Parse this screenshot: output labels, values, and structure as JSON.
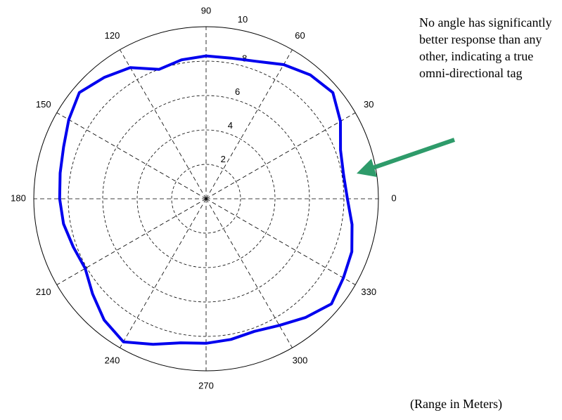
{
  "chart_data": {
    "type": "polar-line",
    "r_ticks": [
      "2",
      "4",
      "6",
      "8"
    ],
    "rmax": 10,
    "theta_ticks": [
      {
        "deg": 0,
        "label": "0"
      },
      {
        "deg": 30,
        "label": "30"
      },
      {
        "deg": 60,
        "label": "60"
      },
      {
        "deg": 90,
        "label": "90"
      },
      {
        "deg": 120,
        "label": "120"
      },
      {
        "deg": 150,
        "label": "150"
      },
      {
        "deg": 180,
        "label": "180"
      },
      {
        "deg": 210,
        "label": "210"
      },
      {
        "deg": 240,
        "label": "240"
      },
      {
        "deg": 270,
        "label": "270"
      },
      {
        "deg": 300,
        "label": "300"
      },
      {
        "deg": 330,
        "label": "330"
      }
    ],
    "extra_tick_label": {
      "deg": 80,
      "label": "10"
    },
    "grid": true,
    "series": [
      {
        "color": "#0000ee",
        "points": [
          {
            "theta": 0,
            "r": 8.2
          },
          {
            "theta": 10,
            "r": 8.1
          },
          {
            "theta": 20,
            "r": 8.3
          },
          {
            "theta": 30,
            "r": 9.0
          },
          {
            "theta": 40,
            "r": 9.6
          },
          {
            "theta": 50,
            "r": 9.4
          },
          {
            "theta": 60,
            "r": 9.0
          },
          {
            "theta": 70,
            "r": 8.5
          },
          {
            "theta": 80,
            "r": 8.3
          },
          {
            "theta": 90,
            "r": 8.3
          },
          {
            "theta": 100,
            "r": 8.2
          },
          {
            "theta": 110,
            "r": 8.0
          },
          {
            "theta": 120,
            "r": 8.8
          },
          {
            "theta": 130,
            "r": 9.2
          },
          {
            "theta": 140,
            "r": 9.6
          },
          {
            "theta": 150,
            "r": 9.2
          },
          {
            "theta": 160,
            "r": 8.8
          },
          {
            "theta": 170,
            "r": 8.6
          },
          {
            "theta": 180,
            "r": 8.5
          },
          {
            "theta": 190,
            "r": 8.4
          },
          {
            "theta": 200,
            "r": 8.2
          },
          {
            "theta": 210,
            "r": 8.1
          },
          {
            "theta": 220,
            "r": 8.6
          },
          {
            "theta": 230,
            "r": 9.2
          },
          {
            "theta": 240,
            "r": 9.6
          },
          {
            "theta": 250,
            "r": 9.0
          },
          {
            "theta": 260,
            "r": 8.5
          },
          {
            "theta": 270,
            "r": 8.4
          },
          {
            "theta": 280,
            "r": 8.3
          },
          {
            "theta": 290,
            "r": 8.2
          },
          {
            "theta": 300,
            "r": 8.5
          },
          {
            "theta": 310,
            "r": 9.0
          },
          {
            "theta": 320,
            "r": 9.5
          },
          {
            "theta": 330,
            "r": 9.2
          },
          {
            "theta": 340,
            "r": 9.0
          },
          {
            "theta": 350,
            "r": 8.6
          }
        ]
      }
    ]
  },
  "annotation": "No angle has significantly better response than any other, indicating a true omni-directional tag",
  "footnote": "(Range in Meters)",
  "colors": {
    "series": "#0000ee",
    "arrow": "#2e9b6a",
    "grid": "#000000"
  }
}
